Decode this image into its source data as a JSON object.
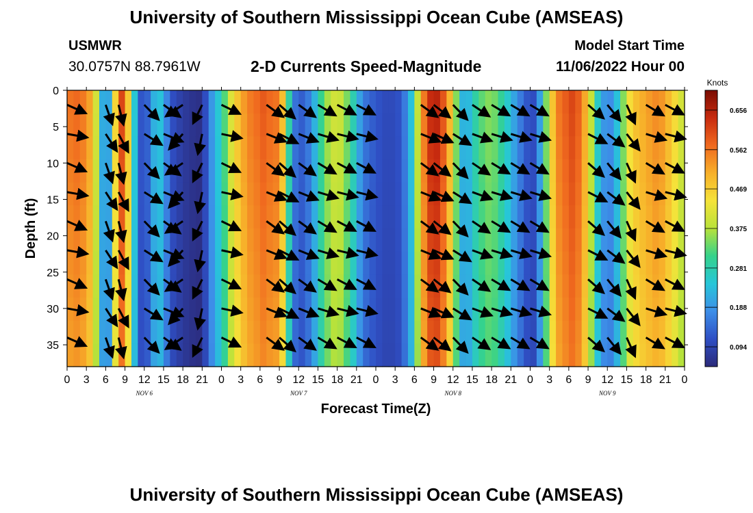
{
  "header": {
    "title": "University of Southern Mississippi Ocean Cube (AMSEAS)",
    "station": "USMWR",
    "coords": "30.0757N  88.7961W",
    "chart_title": "2-D Currents Speed-Magnitude",
    "model_label": "Model Start Time",
    "model_value": "11/06/2022 Hour 00"
  },
  "footer": {
    "title": "University of Southern Mississippi Ocean Cube (AMSEAS)"
  },
  "chart_data": {
    "type": "heatmap",
    "title": "2-D Currents Speed-Magnitude",
    "xlabel": "Forecast Time(Z)",
    "ylabel": "Depth (ft)",
    "x_range_hours": [
      0,
      96
    ],
    "y_range_ft": [
      0,
      38
    ],
    "x_ticks": [
      {
        "h": 0,
        "label": "0"
      },
      {
        "h": 3,
        "label": "3"
      },
      {
        "h": 6,
        "label": "6"
      },
      {
        "h": 9,
        "label": "9"
      },
      {
        "h": 12,
        "label": "12"
      },
      {
        "h": 15,
        "label": "15"
      },
      {
        "h": 18,
        "label": "18"
      },
      {
        "h": 21,
        "label": "21"
      },
      {
        "h": 24,
        "label": "0"
      },
      {
        "h": 27,
        "label": "3"
      },
      {
        "h": 30,
        "label": "6"
      },
      {
        "h": 33,
        "label": "9"
      },
      {
        "h": 36,
        "label": "12"
      },
      {
        "h": 39,
        "label": "15"
      },
      {
        "h": 42,
        "label": "18"
      },
      {
        "h": 45,
        "label": "21"
      },
      {
        "h": 48,
        "label": "0"
      },
      {
        "h": 51,
        "label": "3"
      },
      {
        "h": 54,
        "label": "6"
      },
      {
        "h": 57,
        "label": "9"
      },
      {
        "h": 60,
        "label": "12"
      },
      {
        "h": 63,
        "label": "15"
      },
      {
        "h": 66,
        "label": "18"
      },
      {
        "h": 69,
        "label": "21"
      },
      {
        "h": 72,
        "label": "0"
      },
      {
        "h": 75,
        "label": "3"
      },
      {
        "h": 78,
        "label": "6"
      },
      {
        "h": 81,
        "label": "9"
      },
      {
        "h": 84,
        "label": "12"
      },
      {
        "h": 87,
        "label": "15"
      },
      {
        "h": 90,
        "label": "18"
      },
      {
        "h": 93,
        "label": "21"
      },
      {
        "h": 96,
        "label": "0"
      }
    ],
    "date_labels": [
      {
        "h": 12,
        "label": "NOV 6"
      },
      {
        "h": 36,
        "label": "NOV 7"
      },
      {
        "h": 60,
        "label": "NOV 8"
      },
      {
        "h": 84,
        "label": "NOV 9"
      }
    ],
    "y_ticks": [
      0,
      5,
      10,
      15,
      20,
      25,
      30,
      35
    ],
    "colorbar": {
      "label": "Knots",
      "min": 0.047,
      "max": 0.703,
      "ticks": [
        "0.094",
        "0.188",
        "0.281",
        "0.375",
        "0.469",
        "0.562",
        "0.656"
      ],
      "colors": [
        "#2b2a7a",
        "#2f4fc4",
        "#3d8ee8",
        "#27c6d9",
        "#35d28b",
        "#b8e23a",
        "#f5e33a",
        "#f7b02a",
        "#f06a1f",
        "#c82b0f",
        "#7a0c02"
      ]
    },
    "speed_profile_hours": [
      0,
      2,
      4,
      6,
      7,
      8,
      9,
      10,
      11,
      12,
      13,
      14,
      15,
      16,
      18,
      20,
      21,
      22,
      23,
      24,
      26,
      28,
      30,
      31,
      32,
      33,
      34,
      35,
      36,
      37,
      38,
      40,
      42,
      44,
      46,
      48,
      50,
      52,
      54,
      55,
      56,
      57,
      58,
      59,
      60,
      61,
      62,
      64,
      66,
      68,
      70,
      72,
      73,
      74,
      76,
      78,
      79,
      80,
      81,
      82,
      83,
      84,
      85,
      86,
      87,
      88,
      90,
      92,
      94,
      96
    ],
    "speed_profile_knots": [
      0.56,
      0.58,
      0.5,
      0.12,
      0.3,
      0.62,
      0.6,
      0.35,
      0.15,
      0.09,
      0.18,
      0.26,
      0.22,
      0.12,
      0.08,
      0.06,
      0.06,
      0.16,
      0.22,
      0.28,
      0.46,
      0.55,
      0.58,
      0.6,
      0.55,
      0.58,
      0.4,
      0.18,
      0.12,
      0.14,
      0.18,
      0.35,
      0.42,
      0.32,
      0.16,
      0.12,
      0.1,
      0.12,
      0.28,
      0.5,
      0.62,
      0.66,
      0.64,
      0.55,
      0.45,
      0.25,
      0.2,
      0.32,
      0.36,
      0.28,
      0.18,
      0.1,
      0.12,
      0.28,
      0.55,
      0.6,
      0.62,
      0.55,
      0.48,
      0.3,
      0.22,
      0.16,
      0.2,
      0.28,
      0.42,
      0.48,
      0.52,
      0.55,
      0.48,
      0.38
    ],
    "vector_columns": [
      {
        "h": 0,
        "angle": -18
      },
      {
        "h": 6,
        "angle": -65
      },
      {
        "h": 8,
        "angle": -70
      },
      {
        "h": 12,
        "angle": -40
      },
      {
        "h": 15,
        "angle": -30
      },
      {
        "h": 18,
        "angle": -140
      },
      {
        "h": 21,
        "angle": -110
      },
      {
        "h": 24,
        "angle": -20
      },
      {
        "h": 31,
        "angle": -30
      },
      {
        "h": 33,
        "angle": -35
      },
      {
        "h": 36,
        "angle": -30
      },
      {
        "h": 39,
        "angle": -25
      },
      {
        "h": 42,
        "angle": -22
      },
      {
        "h": 45,
        "angle": -22
      },
      {
        "h": 55,
        "angle": -30
      },
      {
        "h": 57,
        "angle": -32
      },
      {
        "h": 60,
        "angle": -40
      },
      {
        "h": 63,
        "angle": -28
      },
      {
        "h": 66,
        "angle": -25
      },
      {
        "h": 69,
        "angle": -25
      },
      {
        "h": 72,
        "angle": -25
      },
      {
        "h": 81,
        "angle": -35
      },
      {
        "h": 84,
        "angle": -45
      },
      {
        "h": 87,
        "angle": -60
      },
      {
        "h": 90,
        "angle": -25
      },
      {
        "h": 93,
        "angle": -22
      }
    ],
    "vector_depths_ft": [
      2,
      6,
      10,
      14,
      18,
      22,
      26,
      30,
      34
    ]
  }
}
